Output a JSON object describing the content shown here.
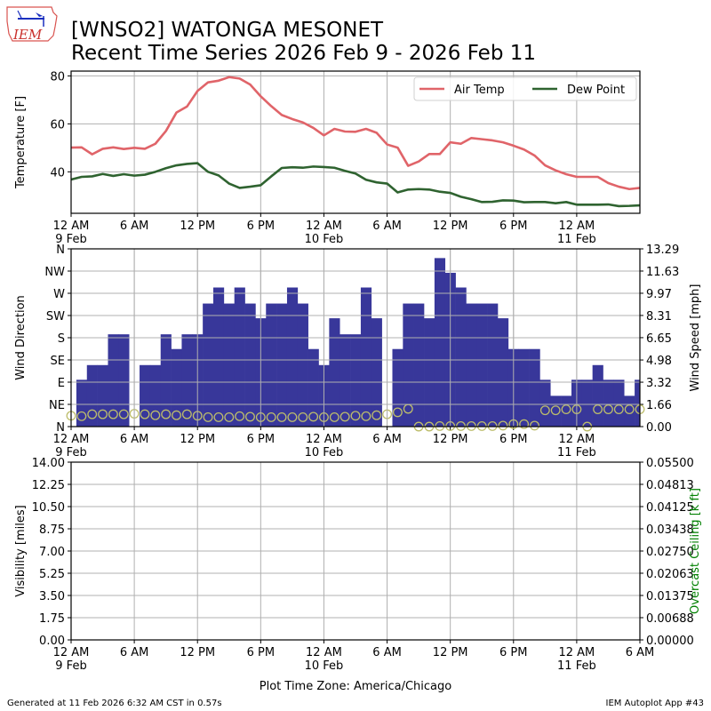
{
  "header": {
    "title_line1": "[WNSO2] WATONGA MESONET",
    "title_line2": "Recent Time Series 2026 Feb 9 - 2026 Feb 11",
    "logo_text": "IEM"
  },
  "footer": {
    "generated": "Generated at 11 Feb 2026 6:32 AM CST in 0.57s",
    "app": "IEM Autoplot App #43",
    "timezone_label": "Plot Time Zone: America/Chicago"
  },
  "colors": {
    "air_temp": "#e06469",
    "dew_point": "#2f6330",
    "wind_bar": "#38379a",
    "wind_dir": "#bdbd6b",
    "grid": "#b0b0b0",
    "ceiling_label": "#008000"
  },
  "x_axis": {
    "hours_span": 54,
    "tick_hours": [
      0,
      6,
      12,
      18,
      24,
      30,
      36,
      42,
      48,
      54
    ],
    "tick_labels": [
      "12 AM",
      "6 AM",
      "12 PM",
      "6 PM",
      "12 AM",
      "6 AM",
      "12 PM",
      "6 PM",
      "12 AM",
      "6 AM"
    ],
    "date_labels": [
      {
        "hour": 0,
        "label": "9 Feb"
      },
      {
        "hour": 24,
        "label": "10 Feb"
      },
      {
        "hour": 48,
        "label": "11 Feb"
      }
    ]
  },
  "chart_data": [
    {
      "type": "line",
      "ylabel": "Temperature [F]",
      "ylim": [
        22.7,
        82
      ],
      "yticks": [
        40,
        60,
        80
      ],
      "x_unit": "hours since 12 AM 9 Feb",
      "legend": [
        "Air Temp",
        "Dew Point"
      ],
      "legend_position": "top-right",
      "series": [
        {
          "name": "Air Temp",
          "values": [
            50.1,
            50.2,
            47.3,
            49.6,
            50.2,
            49.5,
            50,
            49.6,
            51.7,
            57,
            64.7,
            67.2,
            73.7,
            77.3,
            78,
            79.5,
            78.9,
            76.4,
            71.5,
            67.4,
            63.7,
            62,
            60.6,
            58.3,
            55.2,
            57.9,
            56.8,
            56.7,
            57.9,
            56.3,
            51.4,
            50.1,
            42.5,
            44.3,
            47.4,
            47.4,
            52.3,
            51.7,
            54.1,
            53.6,
            53.1,
            52.3,
            50.9,
            49.3,
            46.8,
            42.7,
            40.6,
            39,
            37.9,
            37.9,
            37.9,
            35.3,
            33.8,
            32.8,
            33.3
          ]
        },
        {
          "name": "Dew Point",
          "values": [
            36.8,
            37.9,
            38.1,
            39.1,
            38.3,
            39,
            38.4,
            38.8,
            40,
            41.5,
            42.7,
            43.3,
            43.6,
            40,
            38.5,
            35.1,
            33.3,
            33.8,
            34.4,
            38.1,
            41.6,
            41.9,
            41.7,
            42.2,
            42,
            41.7,
            40.4,
            39.3,
            36.7,
            35.6,
            35.1,
            31.4,
            32.6,
            32.8,
            32.6,
            31.7,
            31.2,
            29.6,
            28.6,
            27.4,
            27.5,
            28.1,
            28,
            27.3,
            27.4,
            27.4,
            26.9,
            27.4,
            26.3,
            26.3,
            26.3,
            26.4,
            25.7,
            25.8,
            26
          ]
        }
      ]
    },
    {
      "type": "bar",
      "ylabel": "Wind Direction",
      "y2label": "Wind Speed [mph]",
      "ylim": [
        0,
        360
      ],
      "y2lim": [
        0,
        13.29
      ],
      "yticks": [
        0,
        45,
        90,
        135,
        180,
        225,
        270,
        315,
        360
      ],
      "ytick_labels": [
        "N",
        "NE",
        "E",
        "SE",
        "S",
        "SW",
        "W",
        "NW",
        "N"
      ],
      "y2ticks": [
        0,
        1.66,
        3.32,
        4.98,
        6.65,
        8.31,
        9.97,
        11.63,
        13.29
      ],
      "y2tick_labels": [
        "0.00",
        "1.66",
        "3.32",
        "4.98",
        "6.65",
        "8.31",
        "9.97",
        "11.63",
        "13.29"
      ],
      "wind_speed_hours": [
        1,
        2,
        3,
        4,
        5,
        6,
        7,
        8,
        9,
        10,
        11,
        12,
        13,
        14,
        15,
        16,
        17,
        18,
        19,
        20,
        21,
        22,
        23,
        24,
        25,
        26,
        27,
        28,
        29,
        30,
        31,
        32,
        33,
        34,
        35,
        36,
        37,
        38,
        39,
        40,
        41,
        42,
        43,
        44,
        45,
        46,
        47,
        48,
        49,
        50,
        51,
        52,
        53,
        54
      ],
      "wind_speed_mph": [
        3.5,
        4.6,
        4.6,
        6.9,
        6.9,
        0,
        4.6,
        4.6,
        6.9,
        5.8,
        6.9,
        6.9,
        9.2,
        10.4,
        9.2,
        10.4,
        9.2,
        8.1,
        9.2,
        9.2,
        10.4,
        9.2,
        5.8,
        4.6,
        8.1,
        6.9,
        6.9,
        10.4,
        8.1,
        0,
        5.8,
        9.2,
        9.2,
        8.1,
        12.6,
        11.5,
        10.4,
        9.2,
        9.2,
        9.2,
        8.1,
        5.8,
        5.8,
        5.8,
        3.5,
        2.3,
        2.3,
        3.5,
        3.5,
        4.6,
        3.5,
        3.5,
        2.3,
        3.5
      ],
      "wind_dir_hours": [
        0,
        1,
        2,
        3,
        4,
        5,
        6,
        7,
        8,
        9,
        10,
        11,
        12,
        13,
        14,
        15,
        16,
        17,
        18,
        19,
        20,
        21,
        22,
        23,
        24,
        25,
        26,
        27,
        28,
        29,
        30,
        31,
        32,
        33,
        34,
        35,
        36,
        37,
        38,
        39,
        40,
        41,
        42,
        43,
        44,
        45,
        46,
        47,
        48,
        49,
        50,
        51,
        52,
        53,
        54
      ],
      "wind_dir_deg": [
        22,
        21,
        25,
        25,
        25,
        25,
        26,
        25,
        23,
        25,
        23,
        25,
        22,
        19,
        19,
        19,
        21,
        20,
        19,
        19,
        19,
        19,
        19,
        20,
        19,
        19,
        20,
        22,
        21,
        23,
        25,
        29,
        36,
        0,
        0,
        1,
        1,
        1,
        1,
        1,
        1,
        2,
        5,
        5,
        2,
        33,
        33,
        35,
        35,
        0,
        35,
        35,
        35,
        35,
        35
      ]
    },
    {
      "type": "line",
      "ylabel": "Visibility [miles]",
      "y2label": "Overcast Ceiling [k ft]",
      "ylim": [
        0,
        14
      ],
      "y2lim": [
        0,
        0.055
      ],
      "ytick_labels": [
        "0.00",
        "1.75",
        "3.50",
        "5.25",
        "7.00",
        "8.75",
        "10.50",
        "12.25",
        "14.00"
      ],
      "y2tick_labels": [
        "0.00000",
        "0.00688",
        "0.01375",
        "0.02063",
        "0.02750",
        "0.03438",
        "0.04125",
        "0.04813",
        "0.05500"
      ],
      "series": []
    }
  ]
}
